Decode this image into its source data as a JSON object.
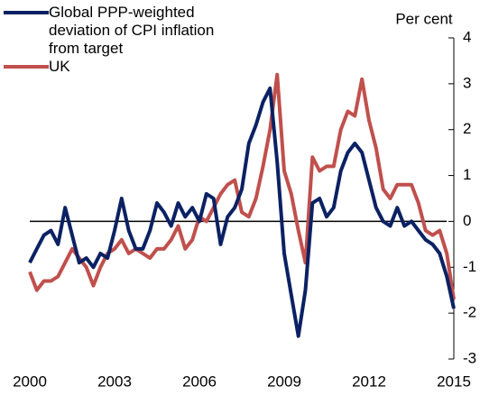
{
  "chart_data": {
    "type": "line",
    "y_label": "Per cent",
    "x": [
      2000,
      2000.25,
      2000.5,
      2000.75,
      2001,
      2001.25,
      2001.5,
      2001.75,
      2002,
      2002.25,
      2002.5,
      2002.75,
      2003,
      2003.25,
      2003.5,
      2003.75,
      2004,
      2004.25,
      2004.5,
      2004.75,
      2005,
      2005.25,
      2005.5,
      2005.75,
      2006,
      2006.25,
      2006.5,
      2006.75,
      2007,
      2007.25,
      2007.5,
      2007.75,
      2008,
      2008.25,
      2008.5,
      2008.75,
      2009,
      2009.25,
      2009.5,
      2009.75,
      2010,
      2010.25,
      2010.5,
      2010.75,
      2011,
      2011.25,
      2011.5,
      2011.75,
      2012,
      2012.25,
      2012.5,
      2012.75,
      2013,
      2013.25,
      2013.5,
      2013.75,
      2014,
      2014.25,
      2014.5,
      2014.75,
      2015
    ],
    "series": [
      {
        "name": "Global PPP-weighted deviation of CPI inflation from target",
        "color": "#0b2163",
        "values": [
          -0.9,
          -0.6,
          -0.3,
          -0.2,
          -0.5,
          0.3,
          -0.3,
          -0.9,
          -0.8,
          -1.0,
          -0.7,
          -0.8,
          -0.2,
          0.5,
          -0.2,
          -0.6,
          -0.6,
          -0.2,
          0.4,
          0.2,
          -0.1,
          0.4,
          0.1,
          0.3,
          0.0,
          0.6,
          0.5,
          -0.5,
          0.1,
          0.3,
          0.7,
          1.7,
          2.1,
          2.6,
          2.9,
          1.3,
          -0.7,
          -1.6,
          -2.5,
          -1.5,
          0.4,
          0.5,
          0.1,
          0.3,
          1.1,
          1.5,
          1.7,
          1.5,
          0.9,
          0.3,
          0.0,
          -0.1,
          0.3,
          -0.1,
          0.0,
          -0.2,
          -0.4,
          -0.5,
          -0.7,
          -1.2,
          -1.9
        ]
      },
      {
        "name": "UK",
        "color": "#c0504d",
        "values": [
          -1.1,
          -1.5,
          -1.3,
          -1.3,
          -1.2,
          -0.9,
          -0.6,
          -0.8,
          -1.0,
          -1.4,
          -1.0,
          -0.7,
          -0.6,
          -0.4,
          -0.7,
          -0.6,
          -0.7,
          -0.8,
          -0.6,
          -0.6,
          -0.4,
          -0.1,
          -0.6,
          -0.4,
          0.1,
          0.0,
          0.3,
          0.6,
          0.8,
          0.9,
          0.2,
          0.1,
          0.5,
          1.2,
          2.0,
          3.2,
          1.1,
          0.6,
          -0.2,
          -0.9,
          1.4,
          1.1,
          1.2,
          1.2,
          2.0,
          2.4,
          2.3,
          3.1,
          2.2,
          1.6,
          0.7,
          0.5,
          0.8,
          0.8,
          0.8,
          0.4,
          -0.2,
          -0.3,
          -0.2,
          -0.7,
          -1.7
        ]
      }
    ],
    "xlim": [
      2000,
      2015
    ],
    "xticks": [
      2000,
      2003,
      2006,
      2009,
      2012,
      2015
    ],
    "ylim": [
      -3,
      4
    ],
    "yticks": [
      -3,
      -2,
      -1,
      0,
      1,
      2,
      3,
      4
    ]
  }
}
